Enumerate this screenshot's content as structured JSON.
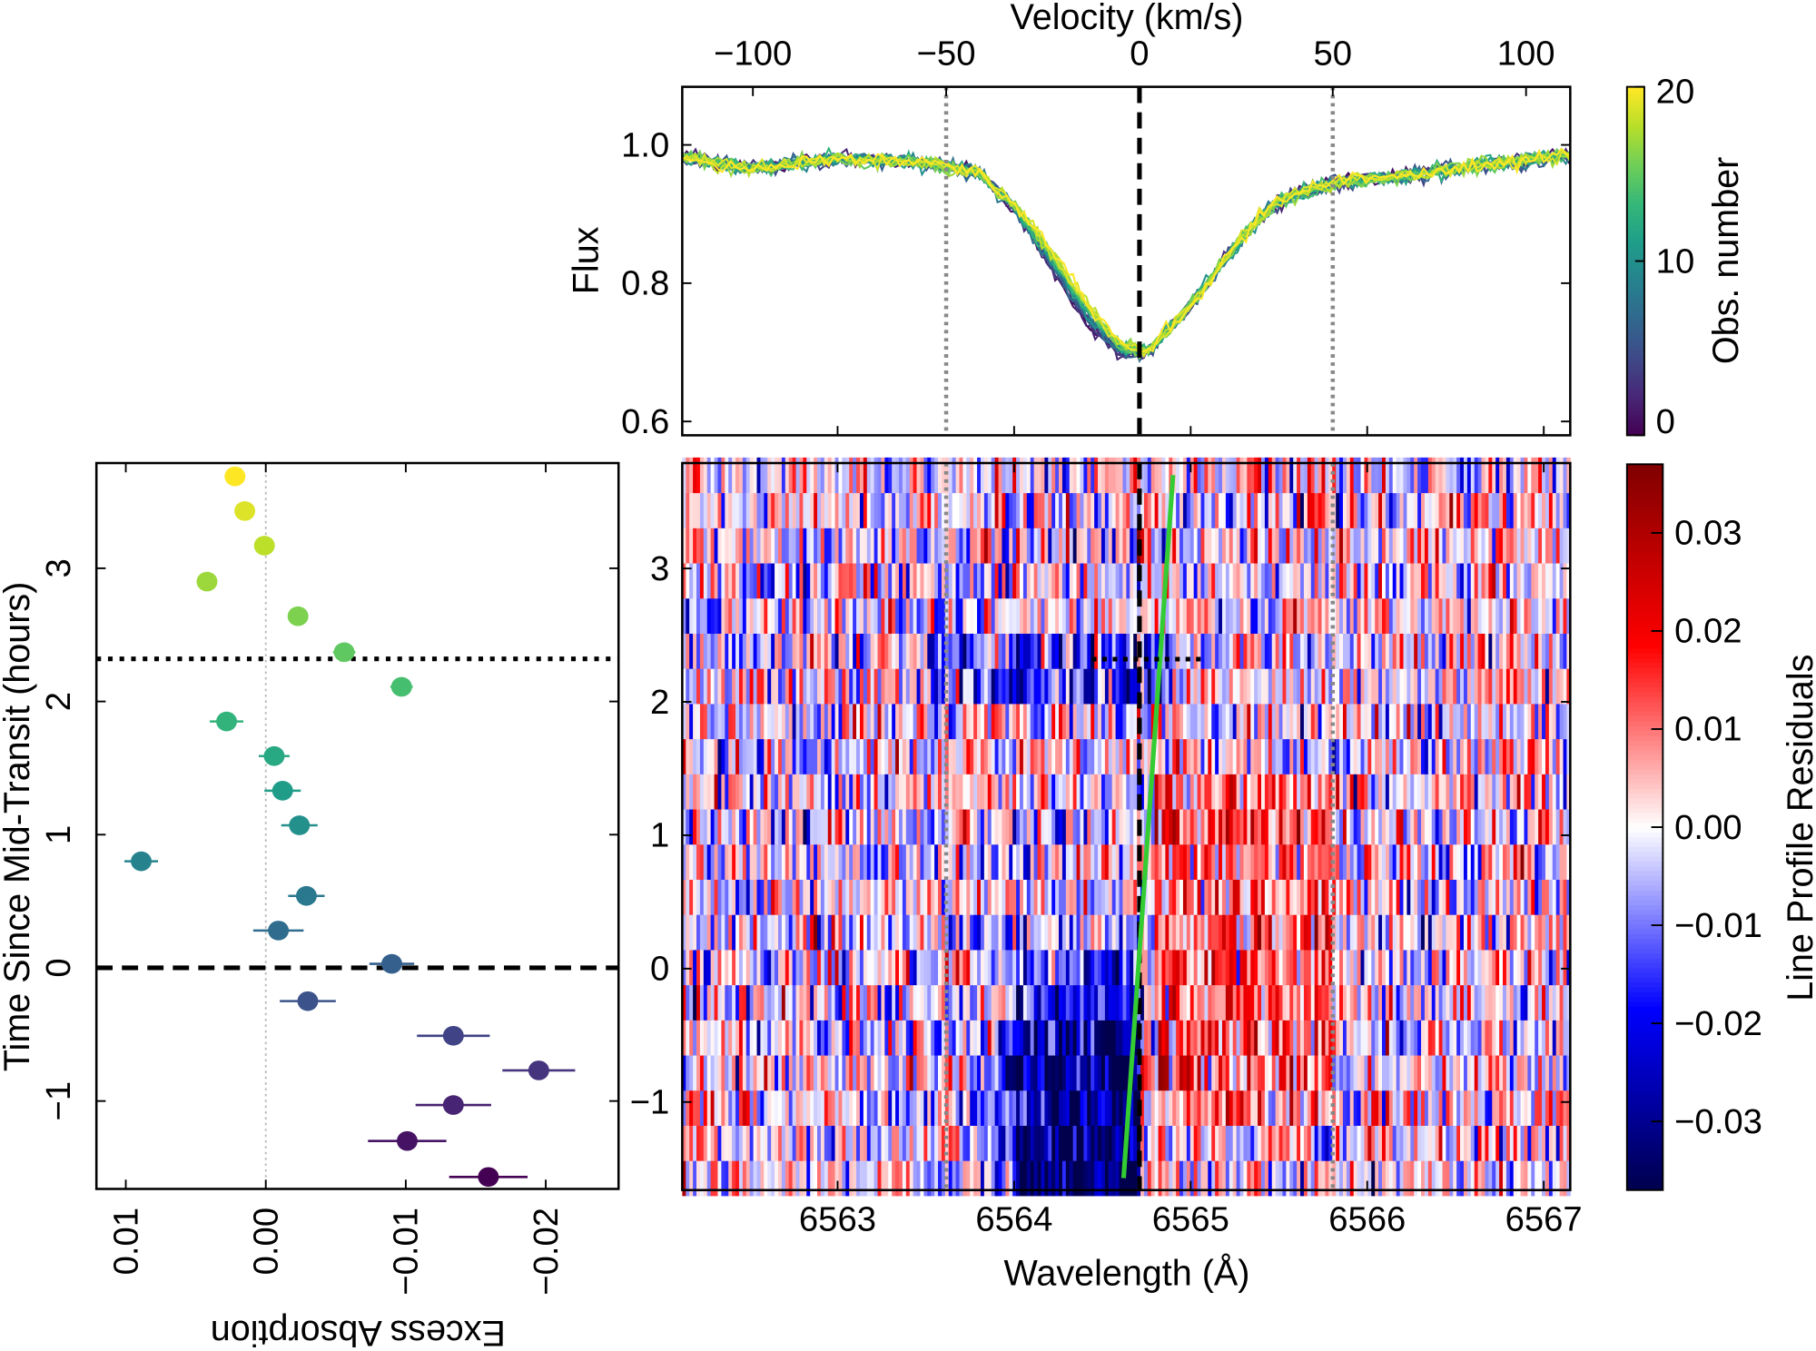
{
  "chart_data": [
    {
      "type": "line",
      "panel": "top",
      "ylabel": "Flux",
      "top_xlabel": "Velocity (km/s)",
      "ylim": [
        0.58,
        1.084
      ],
      "xlim": [
        6562.12,
        6567.15
      ],
      "yticks": [
        "1.0",
        "0.8",
        "0.6"
      ],
      "top_xticks": [
        "−100",
        "−50",
        "0",
        "50",
        "100"
      ],
      "top_xtick_values": [
        -100,
        -50,
        0,
        50,
        100
      ],
      "line_center_wavelength": 6564.71,
      "vertical_lines": {
        "dashed_black_velocity": 0,
        "dotted_gray_velocities": [
          -50,
          50
        ]
      },
      "mean_profile": {
        "wavelength": [
          6562.1,
          6562.5,
          6563.0,
          6563.5,
          6563.8,
          6564.0,
          6564.2,
          6564.4,
          6564.6,
          6564.75,
          6564.9,
          6565.1,
          6565.3,
          6565.5,
          6565.8,
          6566.2,
          6566.6,
          6567.15
        ],
        "flux": [
          0.985,
          0.965,
          0.98,
          0.975,
          0.96,
          0.91,
          0.84,
          0.76,
          0.705,
          0.7,
          0.74,
          0.8,
          0.87,
          0.92,
          0.945,
          0.955,
          0.97,
          0.985
        ]
      },
      "n_observations": 21,
      "colorbar": {
        "label": "Obs. number",
        "range": [
          0,
          20
        ],
        "ticks": [
          "20",
          "10",
          "0"
        ],
        "colormap": "viridis"
      }
    },
    {
      "type": "heatmap",
      "panel": "bottom-right",
      "xlabel": "Wavelength (Å)",
      "xticks": [
        "6563",
        "6564",
        "6565",
        "6566",
        "6567"
      ],
      "xtick_values": [
        6563,
        6564,
        6565,
        6566,
        6567
      ],
      "yticks": [
        "3",
        "2",
        "1",
        "0",
        "−1"
      ],
      "ytick_values": [
        3,
        2,
        1,
        0,
        -1
      ],
      "ylim": [
        -1.66,
        3.79
      ],
      "rows": 21,
      "time_range": [
        -1.57,
        3.7
      ],
      "green_track": {
        "wavelength": [
          6564.62,
          6564.9
        ],
        "time": [
          -1.57,
          3.7
        ]
      },
      "dotted_black_segment": {
        "time": 2.32,
        "wavelength": [
          6564.44,
          6565.08
        ]
      },
      "colorbar": {
        "label": "Line Profile Residuals",
        "range": [
          -0.037,
          0.037
        ],
        "ticks": [
          "0.03",
          "0.02",
          "0.01",
          "0.00",
          "−0.01",
          "−0.02",
          "−0.03"
        ],
        "tick_values": [
          0.03,
          0.02,
          0.01,
          0,
          -0.01,
          -0.02,
          -0.03
        ],
        "colormap": "seismic"
      }
    },
    {
      "type": "scatter",
      "panel": "bottom-left",
      "xlabel": "Excess Absorption",
      "ylabel": "Time Since Mid-Transit (hours)",
      "xlim": [
        0.0121,
        -0.0252
      ],
      "ylim": [
        -1.66,
        3.79
      ],
      "xticks": [
        "0.01",
        "0.00",
        "−0.01",
        "−0.02"
      ],
      "xtick_values": [
        0.01,
        0,
        -0.01,
        -0.02
      ],
      "yticks": [
        "3",
        "2",
        "1",
        "0",
        "−1"
      ],
      "ytick_values": [
        3,
        2,
        1,
        0,
        -1
      ],
      "horizontal_lines": {
        "dashed": 0,
        "dotted": 2.32
      },
      "points": {
        "obs": [
          0,
          1,
          2,
          3,
          4,
          5,
          6,
          7,
          8,
          9,
          10,
          11,
          12,
          13,
          14,
          15,
          16,
          17,
          18,
          19,
          20
        ],
        "time": [
          -1.57,
          -1.3,
          -1.03,
          -0.77,
          -0.51,
          -0.25,
          0.03,
          0.28,
          0.54,
          0.8,
          1.07,
          1.33,
          1.59,
          1.85,
          2.11,
          2.37,
          2.64,
          2.9,
          3.17,
          3.43,
          3.69
        ],
        "excess": [
          -0.0159,
          -0.0101,
          -0.0134,
          -0.0195,
          -0.0134,
          -0.003,
          -0.009,
          -0.0009,
          -0.0029,
          0.0089,
          -0.0024,
          -0.0012,
          -0.0006,
          0.0028,
          -0.0097,
          -0.0056,
          -0.0023,
          0.0042,
          0.0001,
          0.0015,
          0.0022
        ],
        "error": [
          0.0028,
          0.0028,
          0.0027,
          0.0026,
          0.0026,
          0.002,
          0.0016,
          0.0018,
          0.0013,
          0.0012,
          0.0013,
          0.0013,
          0.0011,
          0.0012,
          0.0008,
          0.0008,
          0.0006,
          0.0004,
          0.0005,
          0.0003,
          0.0005
        ]
      }
    }
  ]
}
